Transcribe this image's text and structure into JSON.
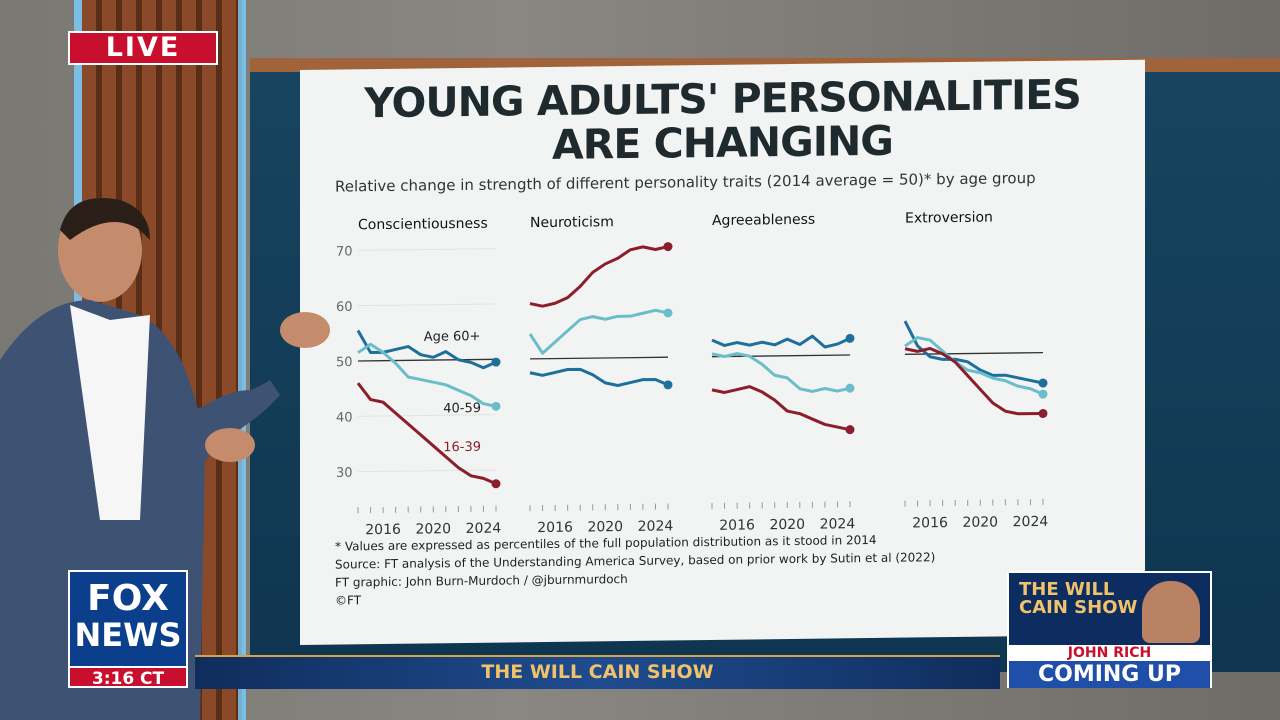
{
  "broadcast": {
    "live_label": "LIVE",
    "network_top": "FOX",
    "network_bottom": "NEWS",
    "time": "3:16 CT",
    "show_title": "THE WILL CAIN SHOW",
    "promo_show": "THE WILL CAIN SHOW",
    "promo_guest": "JOHN RICH",
    "promo_status": "COMING UP"
  },
  "graphic": {
    "headline_line1": "YOUNG ADULTS' PERSONALITIES",
    "headline_line2": "ARE CHANGING",
    "subtitle": "Relative change in strength of different personality traits (2014 average = 50)* by age group",
    "footnote": "* Values are expressed as percentiles of the full population distribution as it stood in 2014",
    "source": "Source: FT analysis of the Understanding America Survey, based on prior work by Sutin et al (2022)",
    "credit": "FT graphic: John Burn-Murdoch / @jburnmurdoch",
    "copyright": "©FT"
  },
  "colors": {
    "age_60_plus": "#1f6f9c",
    "age_40_59": "#6bbec9",
    "age_16_39": "#8c1d2b",
    "live_red": "#c8102e"
  },
  "chart_data": [
    {
      "type": "line",
      "title": "Conscientiousness",
      "x": [
        2014,
        2015,
        2016,
        2017,
        2018,
        2019,
        2020,
        2021,
        2022,
        2023,
        2024,
        2025
      ],
      "ylim": [
        25,
        72
      ],
      "yticks": [
        30,
        40,
        50,
        60,
        70
      ],
      "xticks": [
        2016,
        2020,
        2024
      ],
      "baseline": 50,
      "series": [
        {
          "name": "Age 60+",
          "values": [
            55.5,
            51.5,
            51.5,
            52,
            52.5,
            51,
            50.5,
            51.5,
            50,
            49.5,
            48.5,
            49.5
          ]
        },
        {
          "name": "40-59",
          "values": [
            51.5,
            53,
            51.5,
            49.5,
            47,
            46.5,
            46,
            45.5,
            44.5,
            43.5,
            42,
            41.5
          ]
        },
        {
          "name": "16-39",
          "values": [
            46,
            43,
            42.5,
            40.5,
            38.5,
            36.5,
            34.5,
            32.5,
            30.5,
            29,
            28.5,
            27.5
          ]
        }
      ]
    },
    {
      "type": "line",
      "title": "Neuroticism",
      "x": [
        2014,
        2015,
        2016,
        2017,
        2018,
        2019,
        2020,
        2021,
        2022,
        2023,
        2024,
        2025
      ],
      "ylim": [
        25,
        72
      ],
      "xticks": [
        2016,
        2020,
        2024
      ],
      "baseline": 50,
      "series": [
        {
          "name": "Age 60+",
          "values": [
            47.5,
            47,
            47.5,
            48,
            48,
            47,
            45.5,
            45,
            45.5,
            46,
            46,
            45
          ]
        },
        {
          "name": "40-59",
          "values": [
            54.5,
            51,
            53,
            55,
            57,
            57.5,
            57,
            57.5,
            57.5,
            58,
            58.5,
            58
          ]
        },
        {
          "name": "16-39",
          "values": [
            60,
            59.5,
            60,
            61,
            63,
            65.5,
            67,
            68,
            69.5,
            70,
            69.5,
            70
          ]
        }
      ]
    },
    {
      "type": "line",
      "title": "Agreeableness",
      "x": [
        2014,
        2015,
        2016,
        2017,
        2018,
        2019,
        2020,
        2021,
        2022,
        2023,
        2024,
        2025
      ],
      "ylim": [
        25,
        72
      ],
      "xticks": [
        2016,
        2020,
        2024
      ],
      "baseline": 50,
      "series": [
        {
          "name": "Age 60+",
          "values": [
            53,
            52,
            52.5,
            52,
            52.5,
            52,
            53,
            52,
            53.5,
            51.5,
            52,
            53
          ]
        },
        {
          "name": "40-59",
          "values": [
            50.5,
            50,
            50.5,
            50,
            48.5,
            46.5,
            46,
            44,
            43.5,
            44,
            43.5,
            44
          ]
        },
        {
          "name": "16-39",
          "values": [
            44,
            43.5,
            44,
            44.5,
            43.5,
            42,
            40,
            39.5,
            38.5,
            37.5,
            37,
            36.5
          ]
        }
      ]
    },
    {
      "type": "line",
      "title": "Extroversion",
      "x": [
        2014,
        2015,
        2016,
        2017,
        2018,
        2019,
        2020,
        2021,
        2022,
        2023,
        2024,
        2025
      ],
      "ylim": [
        25,
        72
      ],
      "xticks": [
        2016,
        2020,
        2024
      ],
      "baseline": 50,
      "series": [
        {
          "name": "Age 60+",
          "values": [
            56,
            51.5,
            49.5,
            49,
            49,
            48.5,
            47,
            46,
            46,
            45.5,
            45,
            44.5
          ]
        },
        {
          "name": "40-59",
          "values": [
            51.5,
            53,
            52.5,
            50.5,
            48.5,
            47,
            46.5,
            45.5,
            45,
            44,
            43.5,
            42.5
          ]
        },
        {
          "name": "16-39",
          "values": [
            51,
            50.5,
            51,
            50,
            48.5,
            46,
            43.5,
            41,
            39.5,
            39,
            39,
            39
          ]
        }
      ]
    }
  ],
  "series_labels": {
    "age_60_plus": "Age 60+",
    "age_40_59": "40-59",
    "age_16_39": "16-39"
  }
}
